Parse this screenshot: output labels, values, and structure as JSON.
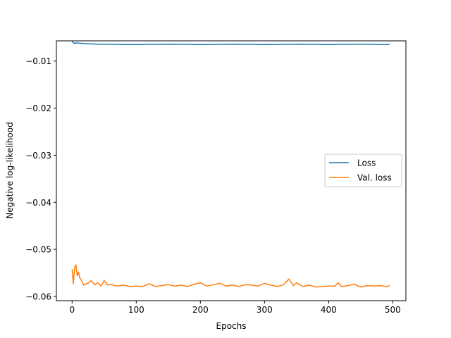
{
  "chart_data": {
    "type": "line",
    "title": "",
    "xlabel": "Epochs",
    "ylabel": "Negative log-likelihood",
    "xlim": [
      -24.5,
      520.5
    ],
    "ylim": [
      -0.0609,
      -0.0057
    ],
    "xticks": [
      0,
      100,
      200,
      300,
      400,
      500
    ],
    "yticks": [
      -0.06,
      -0.05,
      -0.04,
      -0.03,
      -0.02,
      -0.01
    ],
    "xtick_labels": [
      "0",
      "100",
      "200",
      "300",
      "400",
      "500"
    ],
    "ytick_labels": [
      "−0.06",
      "−0.05",
      "−0.04",
      "−0.03",
      "−0.02",
      "−0.01"
    ],
    "grid": false,
    "legend_position": "center-right",
    "series": [
      {
        "name": "Loss",
        "color": "#1f77b4",
        "x": [
          0,
          2,
          4,
          6,
          10,
          20,
          40,
          60,
          80,
          100,
          150,
          200,
          250,
          300,
          350,
          400,
          450,
          495
        ],
        "y": [
          -0.0058,
          -0.0061,
          -0.0063,
          -0.0061,
          -0.0062,
          -0.0063,
          -0.0064,
          -0.0064,
          -0.0065,
          -0.0065,
          -0.0064,
          -0.0065,
          -0.0064,
          -0.0065,
          -0.0064,
          -0.0065,
          -0.0064,
          -0.0065
        ]
      },
      {
        "name": "Val. loss",
        "color": "#ff7f0e",
        "x": [
          0,
          2,
          4,
          6,
          8,
          10,
          12,
          15,
          18,
          20,
          25,
          30,
          35,
          40,
          45,
          50,
          55,
          60,
          70,
          80,
          90,
          100,
          110,
          120,
          130,
          140,
          150,
          160,
          170,
          180,
          190,
          200,
          210,
          220,
          230,
          240,
          250,
          260,
          270,
          280,
          290,
          300,
          310,
          320,
          330,
          338,
          345,
          350,
          360,
          370,
          380,
          390,
          400,
          410,
          415,
          420,
          430,
          440,
          450,
          460,
          470,
          480,
          490,
          495
        ],
        "y": [
          -0.0542,
          -0.0573,
          -0.0538,
          -0.0533,
          -0.0556,
          -0.0548,
          -0.0561,
          -0.0566,
          -0.0576,
          -0.0574,
          -0.0572,
          -0.0566,
          -0.0575,
          -0.0571,
          -0.0578,
          -0.0566,
          -0.0576,
          -0.0574,
          -0.0578,
          -0.0576,
          -0.0579,
          -0.0578,
          -0.0579,
          -0.0573,
          -0.0579,
          -0.0577,
          -0.0575,
          -0.0578,
          -0.0576,
          -0.0579,
          -0.0574,
          -0.0571,
          -0.0578,
          -0.0575,
          -0.0572,
          -0.0578,
          -0.0576,
          -0.0579,
          -0.0575,
          -0.0576,
          -0.0578,
          -0.0572,
          -0.0576,
          -0.0579,
          -0.0575,
          -0.0563,
          -0.0577,
          -0.0571,
          -0.0579,
          -0.0576,
          -0.058,
          -0.0579,
          -0.0578,
          -0.0578,
          -0.0571,
          -0.0579,
          -0.0577,
          -0.0574,
          -0.058,
          -0.0577,
          -0.0578,
          -0.0577,
          -0.0579,
          -0.0577
        ]
      }
    ]
  }
}
